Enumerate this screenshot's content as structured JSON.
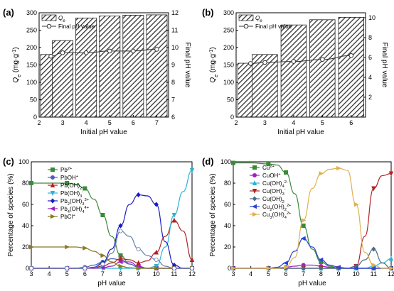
{
  "chart_data": [
    {
      "panel": "(a)",
      "type": "bar",
      "xlabel": "Initial pH value",
      "ylabel": "Q_e (mg·g⁻¹)",
      "ylabel_right": "Final pH value",
      "xlim": [
        2,
        7.5
      ],
      "xticks": [
        2,
        3,
        4,
        5,
        6,
        7
      ],
      "ylim": [
        0,
        300
      ],
      "yticks": [
        0,
        50,
        100,
        150,
        200,
        250,
        300
      ],
      "ylim_right": [
        6,
        12
      ],
      "yticks_right": [
        6,
        7,
        8,
        9,
        10,
        11,
        12
      ],
      "legend": "top-left",
      "series": [
        {
          "name": "Q_e",
          "kind": "bar",
          "axis": "left",
          "x": [
            2.5,
            3,
            4,
            5,
            6,
            7
          ],
          "values": [
            180,
            220,
            285,
            291,
            293,
            294
          ]
        },
        {
          "name": "Final pH value",
          "kind": "line",
          "axis": "right",
          "x": [
            2.5,
            3,
            4,
            5,
            6,
            7
          ],
          "values": [
            9.5,
            9.7,
            9.7,
            9.8,
            9.8,
            9.9
          ]
        }
      ]
    },
    {
      "panel": "(b)",
      "type": "bar",
      "xlabel": "Initial pH value",
      "ylabel": "Q_e (mg·g⁻¹)",
      "ylabel_right": "Final pH value",
      "xlim": [
        2,
        6.5
      ],
      "xticks": [
        2,
        3,
        4,
        5,
        6
      ],
      "ylim": [
        0,
        300
      ],
      "yticks": [
        0,
        50,
        100,
        150,
        200,
        250,
        300
      ],
      "ylim_right": [
        0,
        10.5
      ],
      "yticks_right": [
        2,
        4,
        6,
        8,
        10
      ],
      "legend": "top-left",
      "series": [
        {
          "name": "Q_e",
          "kind": "bar",
          "axis": "left",
          "x": [
            2.5,
            3,
            4,
            5,
            6
          ],
          "values": [
            155,
            180,
            265,
            280,
            287
          ]
        },
        {
          "name": "Final pH value",
          "kind": "line",
          "axis": "right",
          "x": [
            2.5,
            3,
            4,
            5,
            6
          ],
          "values": [
            5.4,
            5.5,
            5.6,
            5.8,
            6.2
          ]
        }
      ]
    },
    {
      "panel": "(c)",
      "type": "line",
      "xlabel": "pH value",
      "ylabel": "Percentage of species (%)",
      "xlim": [
        3,
        12
      ],
      "xticks": [
        3,
        4,
        5,
        6,
        7,
        8,
        9,
        10,
        11,
        12
      ],
      "ylim": [
        0,
        100
      ],
      "yticks": [
        0,
        20,
        40,
        60,
        80,
        100
      ],
      "legend": "left",
      "x": [
        3,
        4,
        5,
        5.5,
        6,
        6.5,
        7,
        7.5,
        8,
        8.5,
        9,
        9.5,
        10,
        10.5,
        11,
        11.5,
        12
      ],
      "series": [
        {
          "name": "Pb²⁺",
          "color": "#3a8a3a",
          "marker": "s",
          "values": [
            80,
            80,
            80,
            79,
            75,
            65,
            50,
            30,
            12,
            4,
            1,
            0,
            0,
            0,
            0,
            0,
            0
          ]
        },
        {
          "name": "PbOH⁺",
          "color": "#4b5fc0",
          "marker": "o",
          "values": [
            0,
            0,
            0,
            0,
            1,
            3,
            6,
            9,
            8,
            4,
            1,
            0,
            0,
            0,
            0,
            0,
            0
          ]
        },
        {
          "name": "Pb(OH)₂",
          "color": "#b22222",
          "marker": "^",
          "values": [
            0,
            0,
            0,
            0,
            0,
            0.5,
            2,
            5,
            9,
            8,
            5,
            7,
            15,
            30,
            45,
            35,
            8
          ]
        },
        {
          "name": "Pb(OH)₃⁻",
          "color": "#2bb3d6",
          "marker": "v",
          "values": [
            0,
            0,
            0,
            0,
            0,
            0,
            0,
            0,
            0,
            0,
            0,
            0,
            2,
            20,
            50,
            72,
            92
          ]
        },
        {
          "name": "Pb₂(OH)₃³⁺",
          "color": "#1c1cc4",
          "marker": "D",
          "values": [
            0,
            0,
            0,
            0,
            0,
            1,
            5,
            18,
            40,
            60,
            69,
            68,
            60,
            25,
            3,
            0,
            0
          ]
        },
        {
          "name": "Pb₄(OH)₄⁴⁺",
          "color": "#a020c0",
          "marker": "<",
          "values": [
            0,
            0,
            0,
            0,
            0,
            0,
            0.5,
            2,
            6,
            6,
            2,
            0,
            0,
            0,
            0,
            0,
            0
          ]
        },
        {
          "name": "PbCl⁺",
          "color": "#8a7a20",
          "marker": ">",
          "values": [
            20,
            20,
            20,
            20,
            19,
            16,
            12,
            6,
            2,
            0.5,
            0,
            0,
            0,
            0,
            0,
            0,
            0
          ]
        },
        {
          "name": "",
          "color": "#6a7fa8",
          "marker": "o",
          "values": [
            0,
            0,
            0,
            0,
            0,
            0.5,
            4,
            14,
            35,
            30,
            18,
            12,
            8,
            2,
            0,
            0,
            0
          ]
        }
      ]
    },
    {
      "panel": "(d)",
      "type": "line",
      "xlabel": "pH value",
      "ylabel": "Percentage of species (%)",
      "xlim": [
        3,
        12
      ],
      "xticks": [
        3,
        4,
        5,
        6,
        7,
        8,
        9,
        10,
        11,
        12
      ],
      "ylim": [
        0,
        100
      ],
      "yticks": [
        0,
        20,
        40,
        60,
        80,
        100
      ],
      "legend": "left",
      "x": [
        3,
        4,
        5,
        5.5,
        6,
        6.5,
        7,
        7.5,
        8,
        8.5,
        9,
        9.5,
        10,
        10.5,
        11,
        11.5,
        12
      ],
      "series": [
        {
          "name": "Cu²⁺",
          "color": "#3a8a3a",
          "marker": "s",
          "values": [
            99,
            99,
            98,
            97,
            90,
            70,
            40,
            18,
            6,
            2,
            0,
            0,
            0,
            0,
            0,
            0,
            0
          ]
        },
        {
          "name": "CuOH⁺",
          "color": "#a020c0",
          "marker": "o",
          "values": [
            0,
            0,
            0,
            0.5,
            1,
            2,
            3,
            3,
            2,
            1,
            0,
            0,
            0,
            0,
            0,
            0,
            0
          ]
        },
        {
          "name": "Cu(OH)₄²⁻",
          "color": "#2bb3d6",
          "marker": "^",
          "values": [
            0,
            0,
            0,
            0,
            0,
            0,
            0,
            0,
            0,
            0,
            0,
            0,
            0,
            0,
            2,
            5,
            9
          ]
        },
        {
          "name": "Cu(OH)₃⁻",
          "color": "#b22222",
          "marker": "v",
          "values": [
            0,
            0,
            0,
            0,
            0,
            0,
            0,
            0,
            0,
            0,
            0,
            0,
            2,
            30,
            75,
            87,
            89
          ]
        },
        {
          "name": "Cu(OH)₂",
          "color": "#4a6a8a",
          "marker": "D",
          "values": [
            0,
            0,
            0,
            0,
            0,
            0,
            0,
            0,
            0,
            0,
            0,
            0,
            2,
            8,
            18,
            5,
            0
          ]
        },
        {
          "name": "Cu₂(OH)₂²⁺",
          "color": "#2b45d6",
          "marker": "<",
          "values": [
            0,
            0,
            0,
            1,
            5,
            16,
            28,
            20,
            8,
            3,
            1,
            0,
            0,
            0,
            0,
            0,
            0
          ]
        },
        {
          "name": "Cu₃(OH)₄²⁺",
          "color": "#e0b050",
          "marker": ">",
          "values": [
            0,
            0,
            0,
            0,
            1,
            10,
            45,
            75,
            89,
            93,
            94,
            92,
            60,
            15,
            3,
            0,
            0
          ]
        }
      ]
    }
  ],
  "legend_labels": {
    "a": {
      "qe": "Qe",
      "final": "Final pH value"
    },
    "b": {
      "qe": "Qe",
      "final": "Final pH value"
    }
  }
}
